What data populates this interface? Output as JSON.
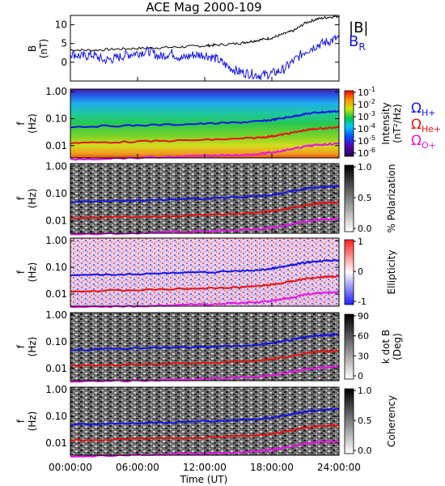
{
  "chart_data": [
    {
      "type": "line",
      "title": "ACE Mag 2000-109",
      "ylabel": "B",
      "yunit": "(nT)",
      "ylim": [
        -5,
        12.5
      ],
      "yticks": [
        0,
        5,
        10
      ],
      "ytick_labels": [
        "0",
        "5",
        "10"
      ],
      "series": [
        {
          "name": "|B|",
          "color": "#000000",
          "x": [
            0,
            2,
            4,
            6,
            8,
            10,
            12,
            13,
            15,
            16,
            17,
            18,
            19,
            20,
            21,
            22,
            23,
            24
          ],
          "values": [
            3.3,
            3.2,
            3.5,
            3.7,
            3.9,
            4.1,
            4.4,
            4.6,
            5.0,
            5.5,
            6.0,
            6.5,
            7.5,
            8.5,
            10.5,
            11.5,
            12.0,
            12.3
          ]
        },
        {
          "name": "B",
          "name_sub": "R",
          "color": "#1414e6",
          "x": [
            0,
            1,
            2,
            3,
            4,
            5,
            6,
            7,
            8,
            9,
            10,
            11,
            12,
            13,
            14,
            15,
            16,
            17,
            18,
            19,
            20,
            21,
            22,
            23,
            24
          ],
          "values": [
            2.5,
            1.5,
            2.0,
            0.5,
            1.0,
            2.0,
            2.5,
            3.0,
            1.5,
            2.5,
            1.0,
            2.0,
            2.0,
            1.0,
            -1.0,
            -2.5,
            -3.0,
            -3.5,
            -3.0,
            -2.0,
            0.5,
            3.0,
            4.5,
            5.5,
            6.5
          ]
        }
      ]
    },
    {
      "type": "heatmap",
      "quantity": "Intensity",
      "ylabel": "f",
      "yunit": "(Hz)",
      "colorbar_label": "Intensity",
      "colorbar_unit": "(nT²/Hz)",
      "colorbar_ticks": [
        "10",
        "10",
        "10",
        "10",
        "10",
        "10"
      ],
      "colorbar_tick_exps": [
        "-1",
        "-2",
        "-3",
        "-4",
        "-5",
        "-6"
      ],
      "colormap": "rainbow"
    },
    {
      "type": "heatmap",
      "quantity": "% Polarization",
      "ylabel": "f",
      "yunit": "(Hz)",
      "colorbar_label": "% Polarization",
      "colorbar_ticks": [
        "1.0",
        "0.5",
        "0.0"
      ],
      "colormap": "gray"
    },
    {
      "type": "heatmap",
      "quantity": "Ellipticity",
      "ylabel": "f",
      "yunit": "(Hz)",
      "colorbar_label": "Ellipticity",
      "colorbar_ticks": [
        "1",
        "0",
        "-1"
      ],
      "colormap": "red-white-blue"
    },
    {
      "type": "heatmap",
      "quantity": "k dot B",
      "ylabel": "f",
      "yunit": "(Hz)",
      "colorbar_label": "k dot B",
      "colorbar_unit": "(Deg)",
      "colorbar_ticks": [
        "90",
        "60",
        "30",
        "0"
      ],
      "colormap": "gray"
    },
    {
      "type": "heatmap",
      "quantity": "Coherency",
      "ylabel": "f",
      "yunit": "(Hz)",
      "colorbar_label": "Coherency",
      "colorbar_ticks": [
        "1.0",
        "0.5",
        "0.0"
      ],
      "colormap": "gray"
    }
  ],
  "shared": {
    "x_ticks": [
      0,
      6,
      12,
      18,
      24
    ],
    "x_tick_labels": [
      "00:00:00",
      "06:00:00",
      "12:00:00",
      "18:00:00",
      "24:00:00"
    ],
    "xlabel": "Time (UT)",
    "f_ticks": [
      1.0,
      0.1,
      0.01
    ],
    "f_tick_labels": [
      "1.00",
      "0.10",
      "0.01"
    ],
    "flim": [
      0.0035,
      1.25
    ],
    "gyro_lines": [
      {
        "symbol": "Ω",
        "sub": "H+",
        "color": "#1414e6",
        "x": [
          0,
          4,
          8,
          12,
          15,
          17,
          18,
          19,
          20,
          21,
          22,
          23,
          24
        ],
        "values": [
          0.05,
          0.054,
          0.059,
          0.065,
          0.072,
          0.08,
          0.09,
          0.105,
          0.125,
          0.15,
          0.17,
          0.18,
          0.19
        ]
      },
      {
        "symbol": "Ω",
        "sub": "He+",
        "color": "#e61414",
        "x": [
          0,
          4,
          8,
          12,
          15,
          17,
          18,
          19,
          20,
          21,
          22,
          23,
          24
        ],
        "values": [
          0.0125,
          0.0135,
          0.0148,
          0.0163,
          0.018,
          0.02,
          0.0225,
          0.026,
          0.031,
          0.0375,
          0.0425,
          0.045,
          0.0475
        ]
      },
      {
        "symbol": "Ω",
        "sub": "O+",
        "color": "#e614e6",
        "x": [
          0,
          4,
          8,
          12,
          15,
          17,
          18,
          19,
          20,
          21,
          22,
          23,
          24
        ],
        "values": [
          0.0031,
          0.0034,
          0.0037,
          0.0041,
          0.0045,
          0.005,
          0.0056,
          0.0065,
          0.0078,
          0.0094,
          0.0106,
          0.0113,
          0.0119
        ]
      }
    ]
  }
}
